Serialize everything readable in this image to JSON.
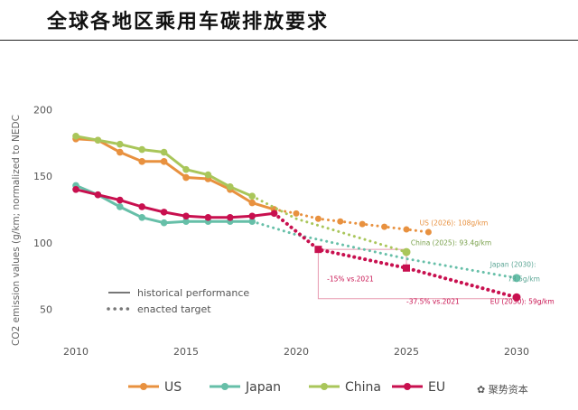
{
  "page_title": "全球各地区乘用车碳排放要求",
  "watermark": "聚势资本",
  "chart_data": {
    "type": "line",
    "title": "",
    "ylabel": "CO2 emission values (g/km; normalized to NEDC",
    "xlim": [
      2009,
      2031
    ],
    "ylim": [
      28,
      200
    ],
    "x_ticks": [
      "2010",
      "2015",
      "2020",
      "2025",
      "2030"
    ],
    "y_ticks": [
      "50",
      "100",
      "150",
      "200"
    ],
    "series": [
      {
        "name": "US",
        "color": "#e8913f",
        "historical": [
          [
            2010,
            178
          ],
          [
            2011,
            177
          ],
          [
            2012,
            168
          ],
          [
            2013,
            161
          ],
          [
            2014,
            161
          ],
          [
            2015,
            149
          ],
          [
            2016,
            148
          ],
          [
            2017,
            140
          ],
          [
            2018,
            130
          ],
          [
            2019,
            125
          ]
        ],
        "target": [
          [
            2019,
            125
          ],
          [
            2020,
            122
          ],
          [
            2021,
            118
          ],
          [
            2022,
            116
          ],
          [
            2023,
            114
          ],
          [
            2024,
            112
          ],
          [
            2025,
            110
          ],
          [
            2026,
            108
          ]
        ]
      },
      {
        "name": "Japan",
        "color": "#66bfa8",
        "historical": [
          [
            2010,
            143
          ],
          [
            2011,
            136
          ],
          [
            2012,
            127
          ],
          [
            2013,
            119
          ],
          [
            2014,
            115
          ],
          [
            2015,
            116
          ],
          [
            2016,
            116
          ],
          [
            2017,
            116
          ],
          [
            2018,
            116
          ]
        ],
        "target": [
          [
            2018,
            116
          ],
          [
            2020,
            106
          ],
          [
            2025,
            88
          ],
          [
            2030,
            73.5
          ]
        ]
      },
      {
        "name": "China",
        "color": "#a9c65a",
        "historical": [
          [
            2010,
            180
          ],
          [
            2011,
            177
          ],
          [
            2012,
            174
          ],
          [
            2013,
            170
          ],
          [
            2014,
            168
          ],
          [
            2015,
            155
          ],
          [
            2016,
            151
          ],
          [
            2017,
            142
          ],
          [
            2018,
            135
          ]
        ],
        "target": [
          [
            2018,
            135
          ],
          [
            2020,
            118
          ],
          [
            2025,
            93
          ]
        ]
      },
      {
        "name": "EU",
        "color": "#c8104f",
        "historical": [
          [
            2010,
            140
          ],
          [
            2011,
            136
          ],
          [
            2012,
            132
          ],
          [
            2013,
            127
          ],
          [
            2014,
            123
          ],
          [
            2015,
            120
          ],
          [
            2016,
            119
          ],
          [
            2017,
            119
          ],
          [
            2018,
            120
          ],
          [
            2019,
            122
          ]
        ],
        "target": [
          [
            2019,
            122
          ],
          [
            2021,
            95
          ],
          [
            2025,
            81
          ],
          [
            2030,
            59
          ]
        ]
      }
    ],
    "annotations": [
      {
        "text": "US (2026): 108g/km",
        "x": 2025.6,
        "y": 113,
        "color": "#e8913f"
      },
      {
        "text": "China (2025): 93.4g/km",
        "x": 2025.2,
        "y": 98,
        "color": "#78a04a"
      },
      {
        "text": "Japan (2030):",
        "x": 2028.8,
        "y": 82,
        "color": "#5aa594"
      },
      {
        "text": "73.5g/km",
        "x": 2029.6,
        "y": 71,
        "color": "#5aa594"
      },
      {
        "text": "-15% vs.2021",
        "x": 2021.4,
        "y": 71,
        "color": "#c8104f"
      },
      {
        "text": "-37.5% vs.2021",
        "x": 2025.0,
        "y": 54,
        "color": "#c8104f"
      },
      {
        "text": "EU (2030): 59g/km",
        "x": 2028.8,
        "y": 54,
        "color": "#c8104f"
      }
    ],
    "line_key": [
      {
        "label": "historical performance",
        "style": "solid"
      },
      {
        "label": "enacted target",
        "style": "dotted"
      }
    ],
    "legend_position": "bottom",
    "grid": false
  }
}
